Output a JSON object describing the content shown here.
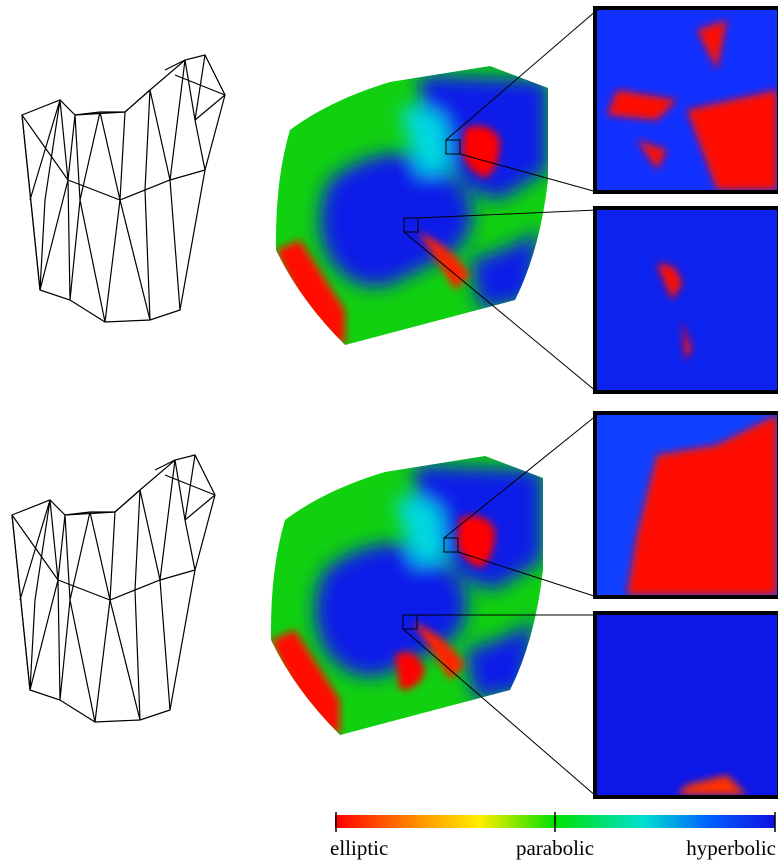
{
  "colorbar": {
    "labels": [
      "elliptic",
      "parabolic",
      "hyperbolic"
    ]
  }
}
